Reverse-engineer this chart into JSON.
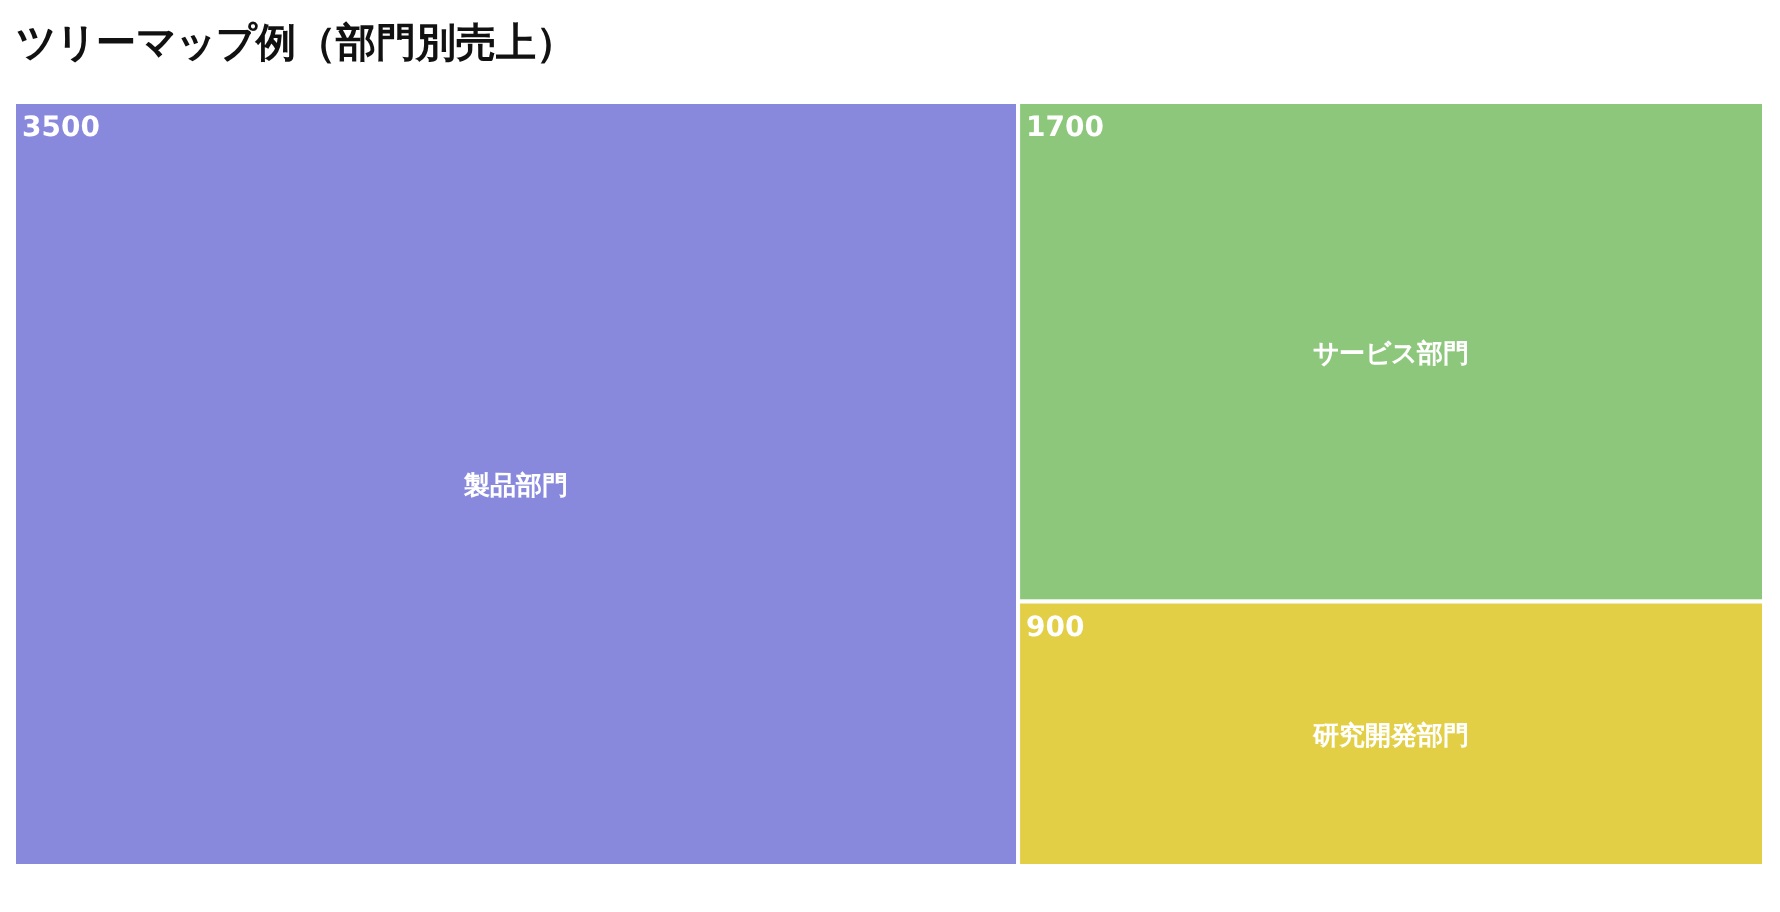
{
  "chart_data": {
    "type": "other",
    "title": "ツリーマップ例（部門別売上）",
    "categories": [
      "製品部門",
      "サービス部門",
      "研究開発部門"
    ],
    "values": [
      3500,
      1700,
      900
    ],
    "colors": [
      "#8889dd",
      "#8dc77b",
      "#e2cf45"
    ],
    "data_labels": true
  }
}
